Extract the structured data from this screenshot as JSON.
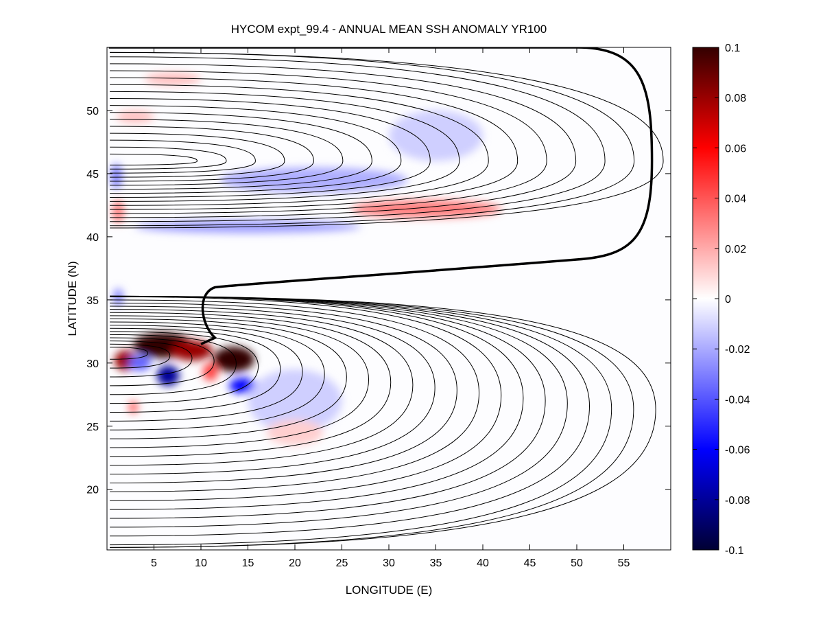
{
  "chart_data": {
    "type": "heatmap",
    "title": "HYCOM expt_99.4 - ANNUAL MEAN SSH ANOMALY YR100",
    "xlabel": "LONGITUDE (E)",
    "ylabel": "LATITUDE (N)",
    "xlim": [
      0,
      60
    ],
    "ylim": [
      15.2,
      55
    ],
    "xticks": [
      5,
      10,
      15,
      20,
      25,
      30,
      35,
      40,
      45,
      50,
      55
    ],
    "yticks": [
      20,
      25,
      30,
      35,
      40,
      45,
      50
    ],
    "colorbar": {
      "range": [
        -0.1,
        0.1
      ],
      "ticks": [
        "0.1",
        "0.08",
        "0.06",
        "0.04",
        "0.02",
        "0",
        "-0.02",
        "-0.04",
        "-0.06",
        "-0.08",
        "-0.1"
      ],
      "tick_values": [
        0.1,
        0.08,
        0.06,
        0.04,
        0.02,
        0,
        -0.02,
        -0.04,
        -0.06,
        -0.08,
        -0.1
      ],
      "colors": [
        "#000033",
        "#0000ff",
        "#ffffff",
        "#ff0000",
        "#330000"
      ]
    },
    "grid": false,
    "anomaly_features": [
      {
        "lon": 6,
        "lat": 31.4,
        "value": 0.1,
        "rlon": 3.2,
        "rlat": 1.0
      },
      {
        "lon": 9,
        "lat": 31,
        "value": 0.09,
        "rlon": 2.2,
        "rlat": 0.8
      },
      {
        "lon": 13.5,
        "lat": 30.3,
        "value": 0.1,
        "rlon": 2.2,
        "rlat": 1.0
      },
      {
        "lon": 2,
        "lat": 30.2,
        "value": 0.09,
        "rlon": 1.2,
        "rlat": 0.8
      },
      {
        "lon": 11,
        "lat": 29.3,
        "value": 0.06,
        "rlon": 0.8,
        "rlat": 0.7
      },
      {
        "lon": 6.5,
        "lat": 29,
        "value": -0.09,
        "rlon": 1.2,
        "rlat": 0.8
      },
      {
        "lon": 14.5,
        "lat": 28.2,
        "value": -0.08,
        "rlon": 1.5,
        "rlat": 0.6
      },
      {
        "lon": 3.5,
        "lat": 30,
        "value": -0.05,
        "rlon": 1.2,
        "rlat": 0.6
      },
      {
        "lon": 2.8,
        "lat": 26.5,
        "value": 0.05,
        "rlon": 0.5,
        "rlat": 0.5
      },
      {
        "lon": 34,
        "lat": 42.2,
        "value": 0.04,
        "rlon": 8,
        "rlat": 0.7
      },
      {
        "lon": 15,
        "lat": 40.8,
        "value": -0.03,
        "rlon": 12,
        "rlat": 0.5
      },
      {
        "lon": 22,
        "lat": 44.5,
        "value": -0.025,
        "rlon": 10,
        "rlat": 1.0
      },
      {
        "lon": 1.2,
        "lat": 42,
        "value": 0.04,
        "rlon": 0.6,
        "rlat": 1.0
      },
      {
        "lon": 1,
        "lat": 44.8,
        "value": -0.04,
        "rlon": 0.6,
        "rlat": 1.0
      },
      {
        "lon": 1.2,
        "lat": 35.2,
        "value": -0.04,
        "rlon": 0.5,
        "rlat": 0.7
      },
      {
        "lon": 20,
        "lat": 27,
        "value": -0.015,
        "rlon": 5,
        "rlat": 2.5
      },
      {
        "lon": 3,
        "lat": 49.5,
        "value": 0.02,
        "rlon": 2,
        "rlat": 0.5
      },
      {
        "lon": 7,
        "lat": 52.5,
        "value": 0.02,
        "rlon": 3,
        "rlat": 0.5
      },
      {
        "lon": 35,
        "lat": 48,
        "value": -0.015,
        "rlon": 5,
        "rlat": 2
      },
      {
        "lon": 20,
        "lat": 24.5,
        "value": 0.015,
        "rlon": 3,
        "rlat": 1
      }
    ]
  }
}
